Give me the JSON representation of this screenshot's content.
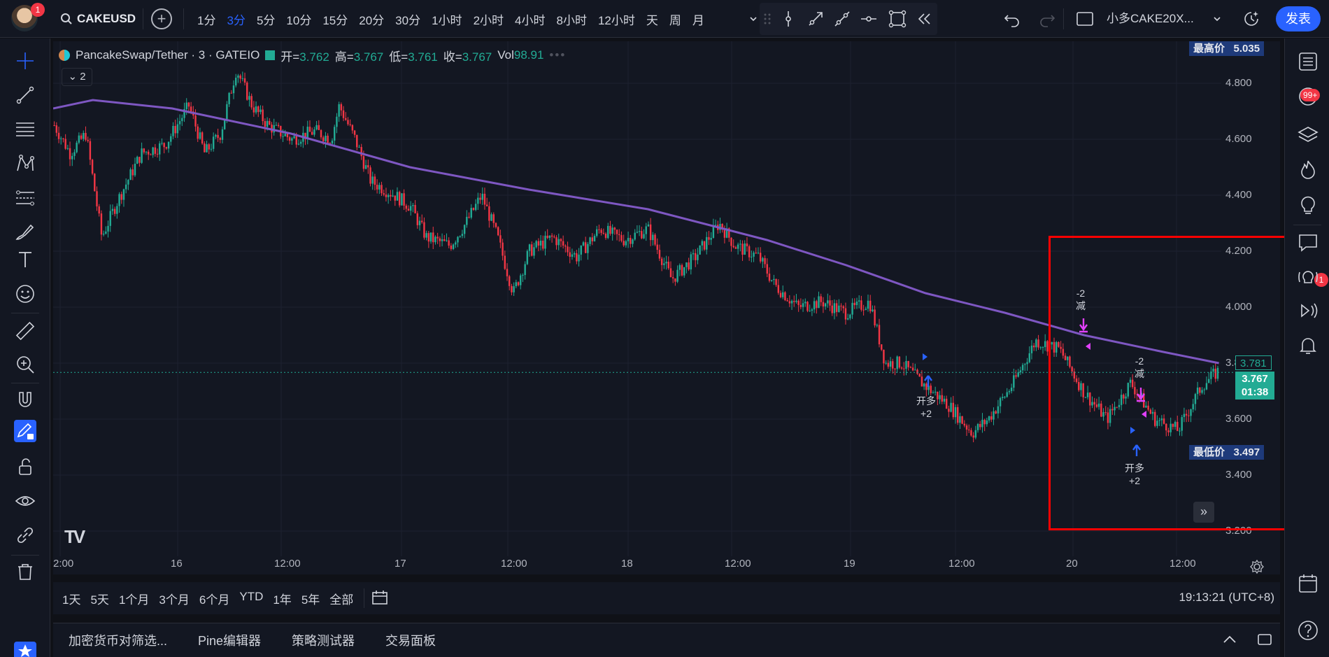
{
  "topbar": {
    "avatar_badge": "1",
    "symbol": "CAKEUSD",
    "intervals": [
      "1分",
      "3分",
      "5分",
      "10分",
      "15分",
      "20分",
      "30分",
      "1小时",
      "2小时",
      "4小时",
      "8小时",
      "12小时",
      "天",
      "周",
      "月"
    ],
    "active_interval": "3分",
    "layout_name": "小多CAKE20X...",
    "publish_label": "发表"
  },
  "legend": {
    "title": "PancakeSwap/Tether · 3 · GATEIO",
    "open_label": "开=",
    "open": "3.762",
    "high_label": "高=",
    "high": "3.767",
    "low_label": "低=",
    "low": "3.761",
    "close_label": "收=",
    "close": "3.767",
    "vol_label": "Vol",
    "vol": "98.91",
    "collapse_count": "2"
  },
  "price_axis": {
    "ticks": [
      "4.800",
      "4.600",
      "4.400",
      "4.200",
      "4.000",
      "3.800",
      "3.600",
      "3.400",
      "3.200"
    ],
    "high_tag_label": "最高价",
    "high_tag_value": "5.035",
    "low_tag_label": "最低价",
    "low_tag_value": "3.497",
    "ma_value": "3.781",
    "last_price": "3.767",
    "countdown": "01:38"
  },
  "time_axis": {
    "ticks": [
      "2:00",
      "16",
      "12:00",
      "17",
      "12:00",
      "18",
      "12:00",
      "19",
      "12:00",
      "20",
      "12:00"
    ]
  },
  "markers": {
    "open_long_label": "开多",
    "open_long_qty": "+2",
    "reduce_label": "减",
    "reduce_qty": "-2"
  },
  "range_bar": {
    "ranges": [
      "1天",
      "5天",
      "1个月",
      "3个月",
      "6个月",
      "YTD",
      "1年",
      "5年",
      "全部"
    ],
    "clock": "19:13:21 (UTC+8)"
  },
  "panel_bar": {
    "tabs": [
      "加密货币对筛选...",
      "Pine编辑器",
      "策略测试器",
      "交易面板"
    ]
  },
  "right_badges": {
    "alerts": "99+",
    "chat": "1"
  },
  "colors": {
    "accent": "#2962ff",
    "up": "#22ab94",
    "down": "#f23645",
    "ma": "#7e57c2",
    "marker_buy": "#2962ff",
    "marker_sell": "#e040fb",
    "highlight": "#ff0000"
  },
  "chart_data": {
    "type": "candlestick",
    "symbol": "PancakeSwap/Tether",
    "interval": "3",
    "exchange": "GATEIO",
    "ylim": [
      3.2,
      4.95
    ],
    "x_ticks": [
      "2:00",
      "16",
      "12:00",
      "17",
      "12:00",
      "18",
      "12:00",
      "19",
      "12:00",
      "20",
      "12:00"
    ],
    "price_path": [
      [
        0,
        4.65
      ],
      [
        2,
        4.55
      ],
      [
        4,
        4.62
      ],
      [
        6,
        4.25
      ],
      [
        8,
        4.38
      ],
      [
        11,
        4.55
      ],
      [
        14,
        4.58
      ],
      [
        17,
        4.72
      ],
      [
        19,
        4.55
      ],
      [
        21,
        4.62
      ],
      [
        23,
        4.85
      ],
      [
        25,
        4.72
      ],
      [
        27,
        4.65
      ],
      [
        30,
        4.6
      ],
      [
        33,
        4.63
      ],
      [
        35,
        4.6
      ],
      [
        36,
        4.72
      ],
      [
        38,
        4.6
      ],
      [
        40,
        4.45
      ],
      [
        43,
        4.4
      ],
      [
        45,
        4.36
      ],
      [
        47,
        4.25
      ],
      [
        50,
        4.22
      ],
      [
        52,
        4.3
      ],
      [
        54,
        4.4
      ],
      [
        56,
        4.25
      ],
      [
        58,
        4.05
      ],
      [
        60,
        4.2
      ],
      [
        63,
        4.25
      ],
      [
        66,
        4.18
      ],
      [
        69,
        4.28
      ],
      [
        72,
        4.24
      ],
      [
        75,
        4.28
      ],
      [
        78,
        4.1
      ],
      [
        81,
        4.18
      ],
      [
        84,
        4.3
      ],
      [
        86,
        4.22
      ],
      [
        89,
        4.18
      ],
      [
        91,
        4.08
      ],
      [
        94,
        4.0
      ],
      [
        97,
        4.02
      ],
      [
        100,
        3.98
      ],
      [
        103,
        4.02
      ],
      [
        105,
        3.8
      ],
      [
        107,
        3.8
      ],
      [
        110,
        3.72
      ],
      [
        113,
        3.65
      ],
      [
        116,
        3.55
      ],
      [
        118,
        3.6
      ],
      [
        121,
        3.72
      ],
      [
        124,
        3.88
      ],
      [
        127,
        3.85
      ],
      [
        130,
        3.7
      ],
      [
        133,
        3.6
      ],
      [
        136,
        3.73
      ],
      [
        139,
        3.6
      ],
      [
        142,
        3.56
      ],
      [
        145,
        3.72
      ],
      [
        147,
        3.77
      ]
    ],
    "ma_path": [
      [
        0,
        4.71
      ],
      [
        5,
        4.74
      ],
      [
        15,
        4.71
      ],
      [
        30,
        4.62
      ],
      [
        45,
        4.5
      ],
      [
        60,
        4.42
      ],
      [
        75,
        4.35
      ],
      [
        90,
        4.24
      ],
      [
        100,
        4.15
      ],
      [
        110,
        4.05
      ],
      [
        120,
        3.98
      ],
      [
        130,
        3.9
      ],
      [
        140,
        3.84
      ],
      [
        147,
        3.8
      ]
    ],
    "x_range": [
      0,
      150
    ],
    "last_price": 3.767,
    "ma_last": 3.781,
    "session_high": 5.035,
    "session_low": 3.497
  }
}
